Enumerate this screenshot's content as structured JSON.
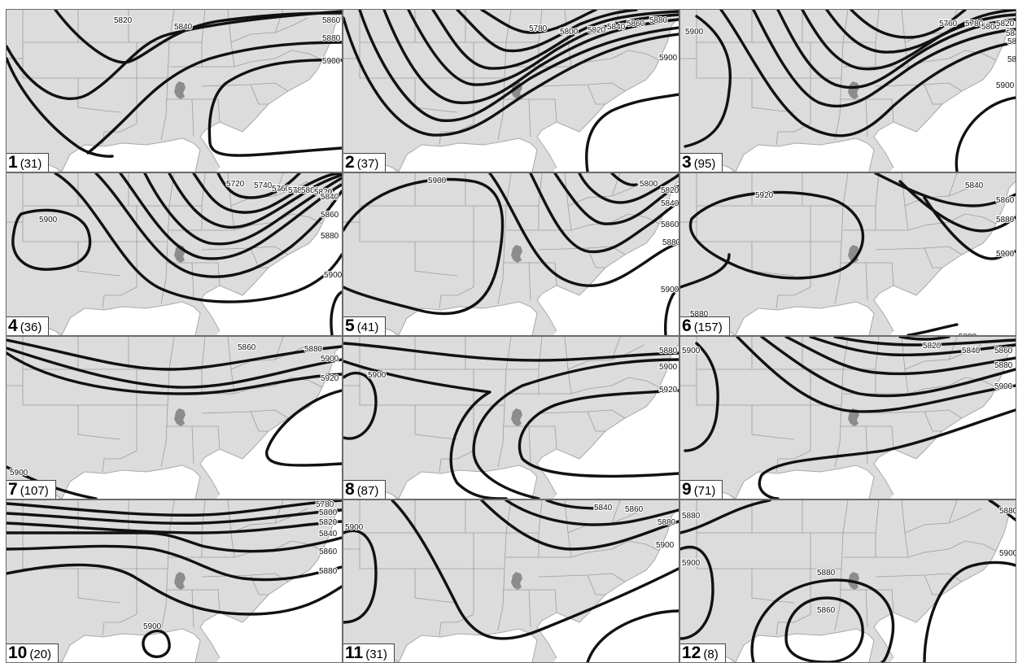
{
  "panels": [
    {
      "number": "1",
      "count": "(31)",
      "contour_labels": [
        "5820",
        "5840",
        "5860",
        "5880",
        "5900"
      ]
    },
    {
      "number": "2",
      "count": "(37)",
      "contour_labels": [
        "5780",
        "5800",
        "5820",
        "5840",
        "5860",
        "5880",
        "5900"
      ]
    },
    {
      "number": "3",
      "count": "(95)",
      "contour_labels": [
        "5900",
        "5760",
        "5780",
        "5800",
        "5820",
        "5840",
        "5860",
        "5880",
        "5900"
      ]
    },
    {
      "number": "4",
      "count": "(36)",
      "contour_labels": [
        "5900",
        "5720",
        "5740",
        "5760",
        "5780",
        "5800",
        "5820",
        "5840",
        "5860",
        "5880",
        "5900"
      ]
    },
    {
      "number": "5",
      "count": "(41)",
      "contour_labels": [
        "5900",
        "5800",
        "5820",
        "5840",
        "5860",
        "5880",
        "5900"
      ]
    },
    {
      "number": "6",
      "count": "(157)",
      "contour_labels": [
        "5920",
        "5840",
        "5860",
        "5880",
        "5900",
        "5880",
        "5880"
      ]
    },
    {
      "number": "7",
      "count": "(107)",
      "contour_labels": [
        "5860",
        "5880",
        "5900",
        "5920",
        "5900"
      ]
    },
    {
      "number": "8",
      "count": "(87)",
      "contour_labels": [
        "5900",
        "5880",
        "5900",
        "5920"
      ]
    },
    {
      "number": "9",
      "count": "(71)",
      "contour_labels": [
        "5900",
        "5820",
        "5840",
        "5860",
        "5880",
        "5900"
      ]
    },
    {
      "number": "10",
      "count": "(20)",
      "contour_labels": [
        "5780",
        "5800",
        "5820",
        "5840",
        "5860",
        "5880",
        "5900"
      ]
    },
    {
      "number": "11",
      "count": "(31)",
      "contour_labels": [
        "5900",
        "5840",
        "5860",
        "5880",
        "5900"
      ]
    },
    {
      "number": "12",
      "count": "(8)",
      "contour_labels": [
        "5880",
        "5900",
        "5880",
        "5860",
        "5880",
        "5900"
      ]
    }
  ]
}
